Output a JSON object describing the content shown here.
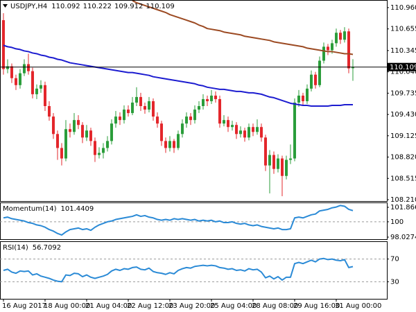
{
  "chart_data": [
    {
      "type": "candlestick",
      "title": "USDJPY,H4",
      "up_color": "#2a9d3a",
      "down_color": "#e3262b",
      "last_price_line": true,
      "candles": [
        [
          110.78,
          110.88,
          110.0,
          110.08
        ],
        [
          110.08,
          110.22,
          110.02,
          110.12
        ],
        [
          110.12,
          110.16,
          109.88,
          109.95
        ],
        [
          109.95,
          110.0,
          109.78,
          109.85
        ],
        [
          109.85,
          110.08,
          109.8,
          110.02
        ],
        [
          110.02,
          110.22,
          109.98,
          110.15
        ],
        [
          110.15,
          110.3,
          110.0,
          110.05
        ],
        [
          110.05,
          110.1,
          109.66,
          109.72
        ],
        [
          109.72,
          109.86,
          109.65,
          109.8
        ],
        [
          109.8,
          109.92,
          109.74,
          109.85
        ],
        [
          109.85,
          109.9,
          109.48,
          109.55
        ],
        [
          109.55,
          109.62,
          109.34,
          109.4
        ],
        [
          109.4,
          109.45,
          109.08,
          109.15
        ],
        [
          109.15,
          109.2,
          108.78,
          108.95
        ],
        [
          108.95,
          109.02,
          108.7,
          108.8
        ],
        [
          108.8,
          109.35,
          108.76,
          109.22
        ],
        [
          109.22,
          109.3,
          109.1,
          109.18
        ],
        [
          109.18,
          109.45,
          109.14,
          109.35
        ],
        [
          109.35,
          109.42,
          109.22,
          109.28
        ],
        [
          109.28,
          109.32,
          109.02,
          109.1
        ],
        [
          109.1,
          109.28,
          109.05,
          109.2
        ],
        [
          109.2,
          109.24,
          108.98,
          109.05
        ],
        [
          109.05,
          109.1,
          108.75,
          108.85
        ],
        [
          108.85,
          108.96,
          108.8,
          108.88
        ],
        [
          108.88,
          109.02,
          108.8,
          108.95
        ],
        [
          108.95,
          109.12,
          108.9,
          109.05
        ],
        [
          109.05,
          109.36,
          109.0,
          109.3
        ],
        [
          109.3,
          109.48,
          109.24,
          109.4
        ],
        [
          109.4,
          109.46,
          109.28,
          109.35
        ],
        [
          109.35,
          109.56,
          109.3,
          109.5
        ],
        [
          109.5,
          109.56,
          109.4,
          109.45
        ],
        [
          109.45,
          109.68,
          109.42,
          109.6
        ],
        [
          109.6,
          109.82,
          109.55,
          109.68
        ],
        [
          109.68,
          109.74,
          109.48,
          109.55
        ],
        [
          109.55,
          109.6,
          109.44,
          109.5
        ],
        [
          109.5,
          109.68,
          109.46,
          109.62
        ],
        [
          109.62,
          109.66,
          109.34,
          109.4
        ],
        [
          109.4,
          109.46,
          109.24,
          109.3
        ],
        [
          109.3,
          109.34,
          108.98,
          109.05
        ],
        [
          109.05,
          109.1,
          108.88,
          108.95
        ],
        [
          108.95,
          109.12,
          108.9,
          109.05
        ],
        [
          109.05,
          109.08,
          108.88,
          108.95
        ],
        [
          108.95,
          109.2,
          108.92,
          109.15
        ],
        [
          109.15,
          109.36,
          109.1,
          109.3
        ],
        [
          109.3,
          109.46,
          109.24,
          109.4
        ],
        [
          109.4,
          109.45,
          109.28,
          109.35
        ],
        [
          109.35,
          109.56,
          109.3,
          109.5
        ],
        [
          109.5,
          109.62,
          109.45,
          109.55
        ],
        [
          109.55,
          109.72,
          109.5,
          109.65
        ],
        [
          109.65,
          109.7,
          109.55,
          109.62
        ],
        [
          109.62,
          109.78,
          109.58,
          109.7
        ],
        [
          109.7,
          109.76,
          109.6,
          109.65
        ],
        [
          109.65,
          109.7,
          109.24,
          109.3
        ],
        [
          109.3,
          109.42,
          109.26,
          109.35
        ],
        [
          109.35,
          109.4,
          109.18,
          109.25
        ],
        [
          109.25,
          109.34,
          109.2,
          109.28
        ],
        [
          109.28,
          109.32,
          109.08,
          109.15
        ],
        [
          109.15,
          109.26,
          109.1,
          109.2
        ],
        [
          109.2,
          109.24,
          109.04,
          109.1
        ],
        [
          109.1,
          109.3,
          109.06,
          109.25
        ],
        [
          109.25,
          109.3,
          109.12,
          109.18
        ],
        [
          109.18,
          109.36,
          109.14,
          109.25
        ],
        [
          109.25,
          109.3,
          109.04,
          109.1
        ],
        [
          109.1,
          109.14,
          108.62,
          108.7
        ],
        [
          108.7,
          108.92,
          108.3,
          108.85
        ],
        [
          108.85,
          108.9,
          108.58,
          108.65
        ],
        [
          108.65,
          108.86,
          108.6,
          108.8
        ],
        [
          108.8,
          108.84,
          108.26,
          108.55
        ],
        [
          108.55,
          108.84,
          108.5,
          108.78
        ],
        [
          108.78,
          109.0,
          108.72,
          108.8
        ],
        [
          108.8,
          109.66,
          108.76,
          109.6
        ],
        [
          109.6,
          109.78,
          109.54,
          109.7
        ],
        [
          109.7,
          109.74,
          109.56,
          109.62
        ],
        [
          109.62,
          109.86,
          109.58,
          109.8
        ],
        [
          109.8,
          110.06,
          109.76,
          110.0
        ],
        [
          110.0,
          110.04,
          109.8,
          109.85
        ],
        [
          109.85,
          110.26,
          109.82,
          110.2
        ],
        [
          110.2,
          110.46,
          110.16,
          110.4
        ],
        [
          110.4,
          110.44,
          110.28,
          110.35
        ],
        [
          110.35,
          110.5,
          110.3,
          110.45
        ],
        [
          110.45,
          110.66,
          110.4,
          110.6
        ],
        [
          110.6,
          110.64,
          110.44,
          110.5
        ],
        [
          110.5,
          110.68,
          110.46,
          110.62
        ],
        [
          110.62,
          110.66,
          110.02,
          110.09
        ],
        [
          110.092,
          110.222,
          109.912,
          110.109
        ]
      ],
      "series": [
        {
          "color": "#1c1cd0",
          "values": [
            110.42,
            110.4,
            110.39,
            110.37,
            110.36,
            110.34,
            110.33,
            110.31,
            110.3,
            110.28,
            110.27,
            110.25,
            110.24,
            110.22,
            110.21,
            110.19,
            110.17,
            110.16,
            110.15,
            110.14,
            110.13,
            110.12,
            110.11,
            110.1,
            110.09,
            110.08,
            110.07,
            110.06,
            110.05,
            110.04,
            110.03,
            110.03,
            110.02,
            110.01,
            110.0,
            109.99,
            109.97,
            109.96,
            109.95,
            109.94,
            109.93,
            109.92,
            109.91,
            109.9,
            109.89,
            109.88,
            109.87,
            109.85,
            109.84,
            109.82,
            109.81,
            109.8,
            109.79,
            109.79,
            109.78,
            109.77,
            109.76,
            109.76,
            109.75,
            109.74,
            109.74,
            109.73,
            109.72,
            109.7,
            109.68,
            109.67,
            109.65,
            109.63,
            109.61,
            109.59,
            109.58,
            109.57,
            109.56,
            109.56,
            109.55,
            109.55,
            109.55,
            109.55,
            109.55,
            109.56,
            109.56,
            109.56,
            109.57,
            109.57,
            109.57
          ]
        },
        {
          "color": "#9c4a22",
          "values": [
            null,
            null,
            null,
            null,
            null,
            null,
            null,
            null,
            null,
            null,
            null,
            null,
            null,
            null,
            null,
            null,
            null,
            null,
            null,
            null,
            null,
            null,
            null,
            null,
            null,
            null,
            null,
            null,
            null,
            null,
            null,
            111.06,
            111.03,
            111.01,
            110.99,
            110.97,
            110.95,
            110.93,
            110.91,
            110.89,
            110.86,
            110.84,
            110.82,
            110.8,
            110.78,
            110.76,
            110.74,
            110.71,
            110.69,
            110.66,
            110.65,
            110.64,
            110.63,
            110.61,
            110.6,
            110.59,
            110.58,
            110.57,
            110.55,
            110.54,
            110.53,
            110.52,
            110.51,
            110.5,
            110.49,
            110.47,
            110.46,
            110.45,
            110.44,
            110.43,
            110.42,
            110.41,
            110.4,
            110.38,
            110.37,
            110.36,
            110.35,
            110.34,
            110.33,
            110.33,
            110.32,
            110.31,
            110.3,
            110.3,
            110.29
          ]
        }
      ],
      "xlim": [
        -0.83,
        92.17
      ],
      "xticks": [
        {
          "value": 0,
          "label": "16 Aug 2017"
        },
        {
          "value": 10,
          "label": "18 Aug 00:00"
        },
        {
          "value": 20,
          "label": "21 Aug 04:00"
        },
        {
          "value": 30,
          "label": "22 Aug 12:00"
        },
        {
          "value": 40,
          "label": "23 Aug 20:00"
        },
        {
          "value": 50,
          "label": "25 Aug 04:00"
        },
        {
          "value": 60,
          "label": "28 Aug 08:00"
        },
        {
          "value": 70,
          "label": "29 Aug 16:00"
        },
        {
          "value": 80,
          "label": "31 Aug 00:00"
        }
      ],
      "ylim": [
        108.19,
        111.059
      ],
      "yticks": [
        {
          "value": 110.96,
          "label": "110.960"
        },
        110.655,
        110.345,
        {
          "value": 110.04,
          "label": "110.040"
        },
        109.735,
        {
          "value": 109.43,
          "label": "109.430"
        },
        109.125,
        {
          "value": 108.82,
          "label": "108.820"
        },
        108.515,
        {
          "value": 108.21,
          "label": "108.210"
        }
      ]
    },
    {
      "type": "line",
      "title": "Momentum(14)",
      "series": [
        {
          "color": "#2a8ad6",
          "values": [
            100.5,
            100.6,
            100.4,
            100.3,
            100.2,
            100.1,
            99.9,
            99.8,
            99.6,
            99.5,
            99.3,
            99.0,
            98.8,
            98.5,
            98.3,
            98.7,
            99.0,
            99.1,
            99.2,
            99.0,
            99.1,
            98.9,
            99.3,
            99.6,
            99.8,
            100.0,
            100.1,
            100.3,
            100.4,
            100.5,
            100.6,
            100.7,
            100.9,
            100.7,
            100.8,
            100.6,
            100.5,
            100.3,
            100.2,
            100.3,
            100.2,
            100.4,
            100.3,
            100.4,
            100.3,
            100.2,
            100.3,
            100.1,
            100.2,
            100.1,
            100.2,
            100.0,
            100.1,
            99.9,
            99.9,
            100.0,
            99.8,
            99.7,
            99.8,
            99.6,
            99.5,
            99.6,
            99.4,
            99.3,
            99.2,
            99.1,
            99.2,
            99.0,
            99.0,
            99.1,
            100.5,
            100.6,
            100.5,
            100.7,
            100.9,
            101.0,
            101.4,
            101.5,
            101.6,
            101.8,
            101.9,
            102.1,
            102.0,
            101.6,
            101.4409
          ]
        }
      ],
      "ylim": [
        97.76,
        102.4
      ],
      "yticks": [
        101.8664,
        100,
        98.0274
      ],
      "levels": [
        100
      ]
    },
    {
      "type": "line",
      "title": "RSI(14)",
      "series": [
        {
          "color": "#2a8ad6",
          "values": [
            50,
            52,
            47,
            45,
            49,
            48,
            49,
            42,
            44,
            40,
            38,
            36,
            33,
            31,
            30,
            42,
            41,
            45,
            44,
            39,
            42,
            38,
            36,
            38,
            40,
            43,
            49,
            52,
            50,
            53,
            52,
            55,
            56,
            52,
            51,
            54,
            48,
            46,
            45,
            43,
            46,
            44,
            50,
            53,
            55,
            54,
            57,
            58,
            59,
            58,
            59,
            58,
            55,
            54,
            52,
            53,
            50,
            51,
            49,
            53,
            51,
            52,
            47,
            37,
            40,
            35,
            39,
            33,
            38,
            38,
            62,
            64,
            62,
            65,
            68,
            65,
            70,
            71,
            69,
            70,
            68,
            67,
            69,
            55,
            56.7092
          ]
        }
      ],
      "ylim": [
        0,
        100
      ],
      "yticks": [
        70,
        30
      ],
      "levels": [
        70,
        30
      ]
    }
  ]
}
